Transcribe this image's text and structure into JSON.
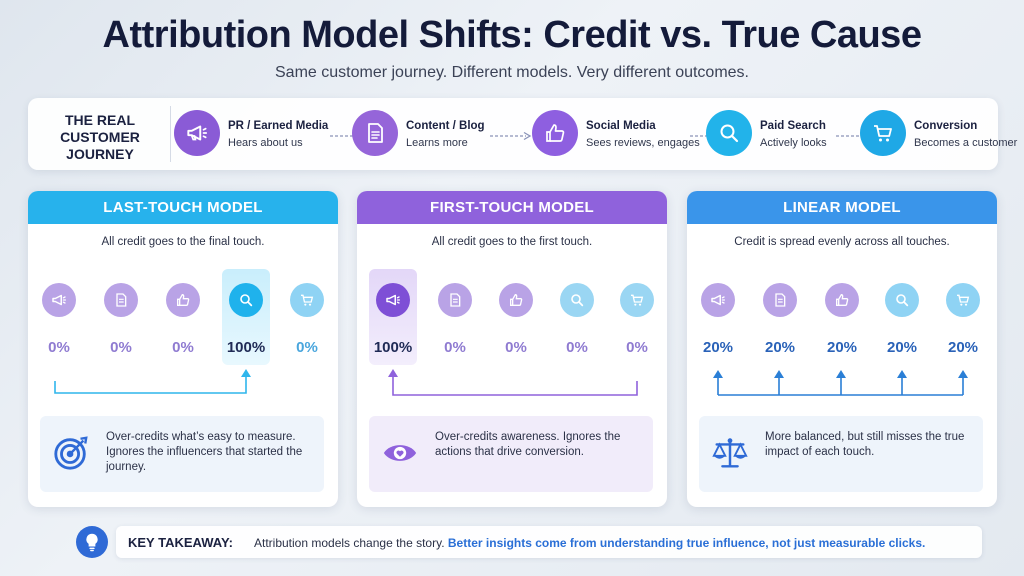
{
  "title": "Attribution Model Shifts: Credit vs. True Cause",
  "subtitle": "Same customer journey. Different models. Very different outcomes.",
  "journey": {
    "label": "THE REAL CUSTOMER JOURNEY",
    "steps": [
      {
        "title": "PR / Earned Media",
        "sub": "Hears about us",
        "icon": "megaphone-icon",
        "color": "#8a5bd6"
      },
      {
        "title": "Content / Blog",
        "sub": "Learns more",
        "icon": "document-icon",
        "color": "#9565d9"
      },
      {
        "title": "Social Media",
        "sub": "Sees reviews, engages",
        "icon": "thumbs-up-icon",
        "color": "#8e5fe0"
      },
      {
        "title": "Paid Search",
        "sub": "Actively looks",
        "icon": "search-icon",
        "color": "#22b3ea"
      },
      {
        "title": "Conversion",
        "sub": "Becomes a customer",
        "icon": "cart-icon",
        "color": "#1fa8e6"
      }
    ]
  },
  "models": [
    {
      "name": "LAST-TOUCH MODEL",
      "desc": "All credit goes to the final touch.",
      "head_color": "#27b2ec",
      "credits": [
        "0%",
        "0%",
        "0%",
        "100%",
        "0%"
      ],
      "highlight_index": 3,
      "note": "Over-credits what’s easy to measure. Ignores the influencers that started the journey.",
      "note_icon": "target-icon"
    },
    {
      "name": "FIRST-TOUCH MODEL",
      "desc": "All credit goes to the first touch.",
      "head_color": "#8f62dc",
      "credits": [
        "100%",
        "0%",
        "0%",
        "0%",
        "0%"
      ],
      "highlight_index": 0,
      "note": "Over-credits awareness. Ignores the actions that drive conversion.",
      "note_icon": "eye-icon"
    },
    {
      "name": "LINEAR MODEL",
      "desc": "Credit is spread evenly across all touches.",
      "head_color": "#3a95ea",
      "credits": [
        "20%",
        "20%",
        "20%",
        "20%",
        "20%"
      ],
      "highlight_index": -1,
      "note": "More balanced, but still misses the true impact of each touch.",
      "note_icon": "scales-icon"
    }
  ],
  "takeaway": {
    "label": "KEY TAKEAWAY:",
    "text": "Attribution models change the story.",
    "highlight": "Better insights come from understanding true influence, not just measurable clicks.",
    "icon": "lightbulb-icon"
  }
}
